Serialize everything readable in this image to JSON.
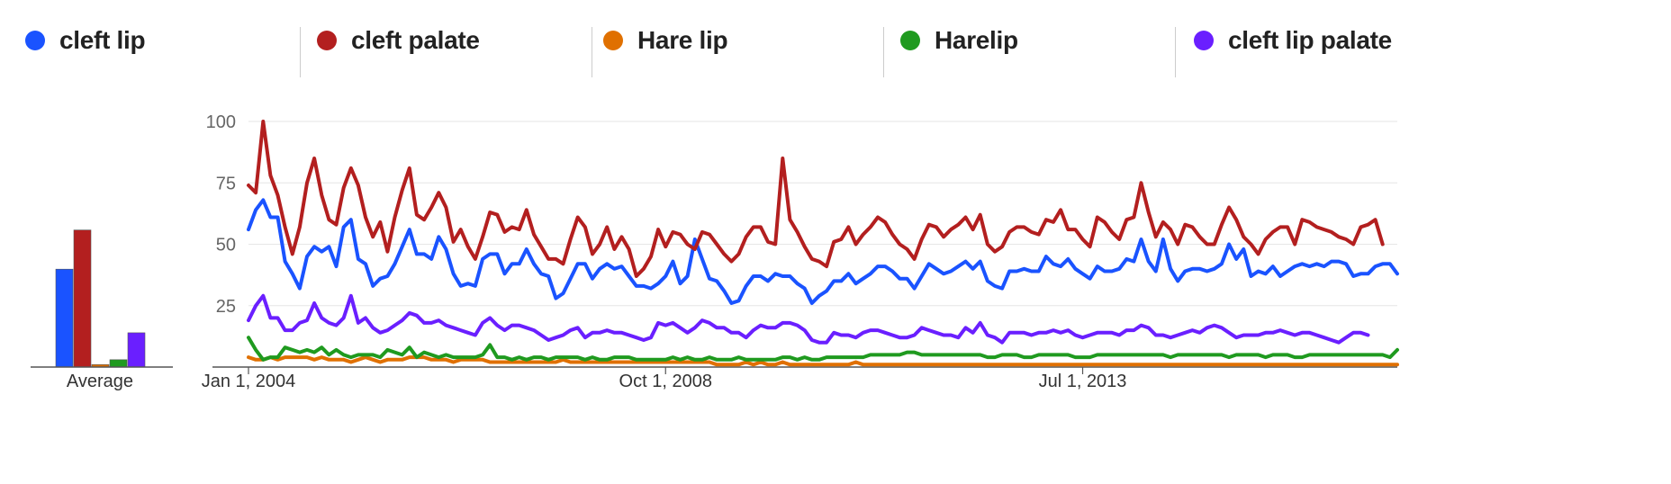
{
  "legend": [
    {
      "label": "cleft lip",
      "color": "#1a53ff"
    },
    {
      "label": "cleft palate",
      "color": "#b31f1f"
    },
    {
      "label": "Hare lip",
      "color": "#e07000"
    },
    {
      "label": "Harelip",
      "color": "#1f9a1f"
    },
    {
      "label": "cleft lip palate",
      "color": "#6a1fff"
    }
  ],
  "chart_data": [
    {
      "type": "bar",
      "title": "",
      "xlabel": "Average",
      "categories": [
        "cleft lip",
        "cleft palate",
        "Hare lip",
        "Harelip",
        "cleft lip palate"
      ],
      "values": [
        40,
        56,
        1,
        3,
        14
      ],
      "colors": [
        "#1a53ff",
        "#b31f1f",
        "#e07000",
        "#1f9a1f",
        "#6a1fff"
      ],
      "ylim": [
        0,
        100
      ]
    },
    {
      "type": "line",
      "title": "",
      "xlabel": "",
      "ylabel": "",
      "ylim": [
        0,
        100
      ],
      "yticks": [
        25,
        50,
        75,
        100
      ],
      "x_start": "Jan 1, 2004",
      "x_end": "Dec 1, 2017",
      "x_tick_labels": [
        "Jan 1, 2004",
        "Oct 1, 2008",
        "Jul 1, 2013"
      ],
      "x_tick_index": [
        0,
        57,
        114
      ],
      "grid": true,
      "series": [
        {
          "name": "cleft lip",
          "color": "#1a53ff",
          "values": [
            56,
            64,
            68,
            61,
            61,
            43,
            38,
            32,
            45,
            49,
            47,
            49,
            41,
            57,
            60,
            44,
            42,
            33,
            36,
            37,
            42,
            49,
            56,
            46,
            46,
            44,
            53,
            48,
            38,
            33,
            34,
            33,
            44,
            46,
            46,
            38,
            42,
            42,
            48,
            42,
            38,
            37,
            28,
            30,
            36,
            42,
            42,
            36,
            40,
            42,
            40,
            41,
            37,
            33,
            33,
            32,
            34,
            37,
            43,
            34,
            37,
            52,
            44,
            36,
            35,
            31,
            26,
            27,
            33,
            37,
            37,
            35,
            38,
            37,
            37,
            34,
            32,
            26,
            29,
            31,
            35,
            35,
            38,
            34,
            36,
            38,
            41,
            41,
            39,
            36,
            36,
            32,
            37,
            42,
            40,
            38,
            39,
            41,
            43,
            40,
            43,
            35,
            33,
            32,
            39,
            39,
            40,
            39,
            39,
            45,
            42,
            41,
            44,
            40,
            38,
            36,
            41,
            39,
            39,
            40,
            44,
            43,
            52,
            43,
            39,
            52,
            40,
            35,
            39,
            40,
            40,
            39,
            40,
            42,
            50,
            44,
            48,
            37,
            39,
            38,
            41,
            37,
            39,
            41,
            42,
            41,
            42,
            41,
            43,
            43,
            42,
            37,
            38,
            38,
            41,
            42,
            42,
            38
          ]
        },
        {
          "name": "cleft palate",
          "color": "#b31f1f",
          "values": [
            74,
            71,
            100,
            78,
            70,
            57,
            46,
            57,
            75,
            85,
            70,
            60,
            58,
            73,
            81,
            74,
            61,
            53,
            59,
            47,
            61,
            72,
            81,
            62,
            60,
            65,
            71,
            65,
            51,
            56,
            49,
            44,
            53,
            63,
            62,
            55,
            57,
            56,
            64,
            54,
            49,
            44,
            44,
            42,
            52,
            61,
            57,
            46,
            50,
            57,
            48,
            53,
            48,
            37,
            40,
            45,
            56,
            49,
            55,
            54,
            50,
            48,
            55,
            54,
            50,
            46,
            43,
            46,
            53,
            57,
            57,
            51,
            50,
            85,
            60,
            55,
            49,
            44,
            43,
            41,
            51,
            52,
            57,
            50,
            54,
            57,
            61,
            59,
            54,
            50,
            48,
            44,
            52,
            58,
            57,
            53,
            56,
            58,
            61,
            56,
            62,
            50,
            47,
            49,
            55,
            57,
            57,
            55,
            54,
            60,
            59,
            64,
            56,
            56,
            52,
            49,
            61,
            59,
            55,
            52,
            60,
            61,
            75,
            63,
            53,
            59,
            56,
            50,
            58,
            57,
            53,
            50,
            50,
            58,
            65,
            60,
            53,
            50,
            46,
            52,
            55,
            57,
            57,
            50,
            60,
            59,
            57,
            56,
            55,
            53,
            52,
            50,
            57,
            58,
            60,
            50
          ]
        },
        {
          "name": "Hare lip",
          "color": "#e07000",
          "values": [
            4,
            3,
            3,
            4,
            3,
            4,
            4,
            4,
            4,
            3,
            4,
            3,
            3,
            3,
            2,
            3,
            4,
            3,
            2,
            3,
            3,
            3,
            4,
            4,
            4,
            3,
            3,
            3,
            2,
            3,
            3,
            3,
            3,
            2,
            2,
            2,
            2,
            2,
            2,
            2,
            2,
            2,
            2,
            3,
            2,
            2,
            2,
            2,
            2,
            2,
            2,
            2,
            2,
            2,
            2,
            2,
            2,
            2,
            2,
            2,
            2,
            2,
            2,
            2,
            1,
            1,
            1,
            1,
            2,
            1,
            2,
            1,
            1,
            2,
            1,
            1,
            1,
            1,
            1,
            1,
            1,
            1,
            1,
            2,
            1,
            1,
            1,
            1,
            1,
            1,
            1,
            1,
            1,
            1,
            1,
            1,
            1,
            1,
            1,
            1,
            1,
            1,
            1,
            1,
            1,
            1,
            1,
            1,
            1,
            1,
            1,
            1,
            1,
            1,
            1,
            1,
            1,
            1,
            1,
            1,
            1,
            1,
            1,
            1,
            1,
            1,
            1,
            1,
            1,
            1,
            1,
            1,
            1,
            1,
            1,
            1,
            1,
            1,
            1,
            1,
            1,
            1,
            1,
            1,
            1,
            1,
            1,
            1,
            1,
            1,
            1,
            1,
            1,
            1,
            1,
            1,
            1,
            1
          ]
        },
        {
          "name": "Harelip",
          "color": "#1f9a1f",
          "values": [
            12,
            7,
            3,
            4,
            4,
            8,
            7,
            6,
            7,
            6,
            8,
            5,
            7,
            5,
            4,
            5,
            5,
            5,
            4,
            7,
            6,
            5,
            8,
            4,
            6,
            5,
            4,
            5,
            4,
            4,
            4,
            4,
            5,
            9,
            4,
            4,
            3,
            4,
            3,
            4,
            4,
            3,
            4,
            4,
            4,
            4,
            3,
            4,
            3,
            3,
            4,
            4,
            4,
            3,
            3,
            3,
            3,
            3,
            4,
            3,
            4,
            3,
            3,
            4,
            3,
            3,
            3,
            4,
            3,
            3,
            3,
            3,
            3,
            4,
            4,
            3,
            4,
            3,
            3,
            4,
            4,
            4,
            4,
            4,
            4,
            5,
            5,
            5,
            5,
            5,
            6,
            6,
            5,
            5,
            5,
            5,
            5,
            5,
            5,
            5,
            5,
            4,
            4,
            5,
            5,
            5,
            4,
            4,
            5,
            5,
            5,
            5,
            5,
            4,
            4,
            4,
            5,
            5,
            5,
            5,
            5,
            5,
            5,
            5,
            5,
            5,
            4,
            5,
            5,
            5,
            5,
            5,
            5,
            5,
            4,
            5,
            5,
            5,
            5,
            4,
            5,
            5,
            5,
            4,
            4,
            5,
            5,
            5,
            5,
            5,
            5,
            5,
            5,
            5,
            5,
            5,
            4,
            7
          ]
        },
        {
          "name": "cleft lip palate",
          "color": "#6a1fff",
          "values": [
            19,
            25,
            29,
            20,
            20,
            15,
            15,
            18,
            19,
            26,
            20,
            18,
            17,
            20,
            29,
            18,
            20,
            16,
            14,
            15,
            17,
            19,
            22,
            21,
            18,
            18,
            19,
            17,
            16,
            15,
            14,
            13,
            18,
            20,
            17,
            15,
            17,
            17,
            16,
            15,
            13,
            11,
            12,
            13,
            15,
            16,
            12,
            14,
            14,
            15,
            14,
            14,
            13,
            12,
            11,
            12,
            18,
            17,
            18,
            16,
            14,
            16,
            19,
            18,
            16,
            16,
            14,
            14,
            12,
            15,
            17,
            16,
            16,
            18,
            18,
            17,
            15,
            11,
            10,
            10,
            14,
            13,
            13,
            12,
            14,
            15,
            15,
            14,
            13,
            12,
            12,
            13,
            16,
            15,
            14,
            13,
            13,
            12,
            16,
            14,
            18,
            13,
            12,
            10,
            14,
            14,
            14,
            13,
            14,
            14,
            15,
            14,
            15,
            13,
            12,
            13,
            14,
            14,
            14,
            13,
            15,
            15,
            17,
            16,
            13,
            13,
            12,
            13,
            14,
            15,
            14,
            16,
            17,
            16,
            14,
            12,
            13,
            13,
            13,
            14,
            14,
            15,
            14,
            13,
            14,
            14,
            13,
            12,
            11,
            10,
            12,
            14,
            14,
            13
          ]
        }
      ]
    }
  ]
}
